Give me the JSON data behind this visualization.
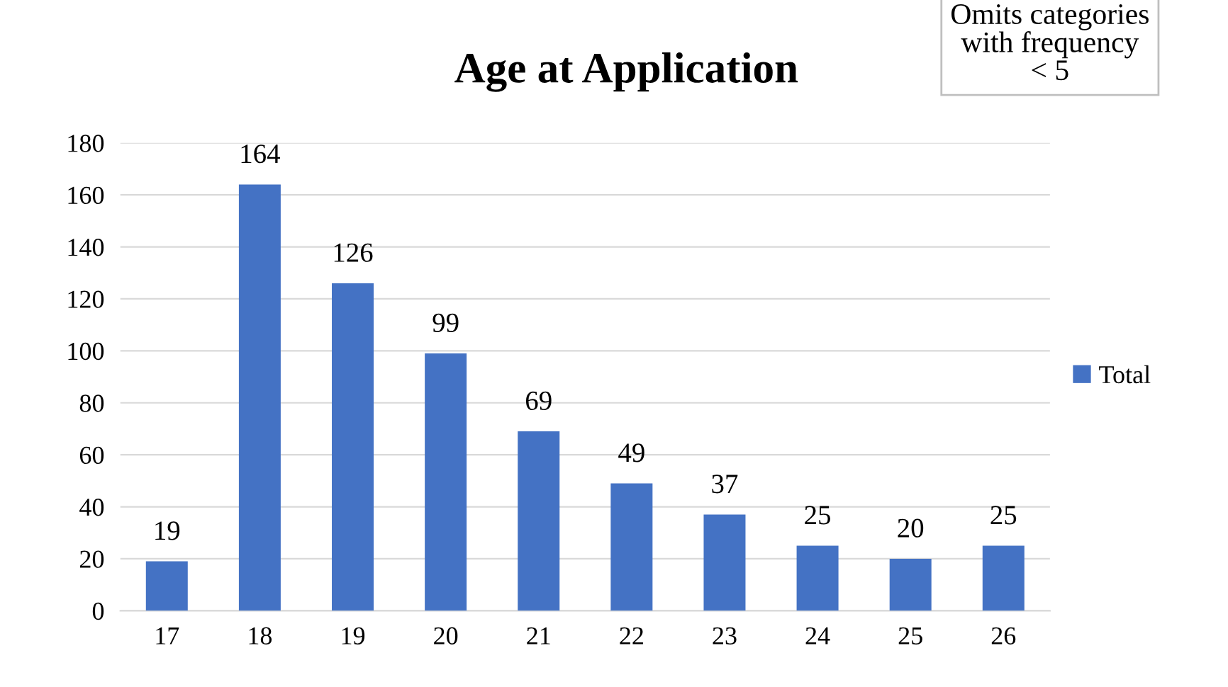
{
  "chart_data": {
    "type": "bar",
    "title": "Age at Application",
    "annotations": [
      "Omits categories\nwith frequency\n< 5"
    ],
    "categories": [
      "17",
      "18",
      "19",
      "20",
      "21",
      "22",
      "23",
      "24",
      "25",
      "26"
    ],
    "series": [
      {
        "name": "Total",
        "color": "#4472c4",
        "values": [
          19,
          164,
          126,
          99,
          69,
          49,
          37,
          25,
          20,
          25
        ]
      }
    ],
    "ylim": [
      0,
      180
    ],
    "yticks": [
      0,
      20,
      40,
      60,
      80,
      100,
      120,
      140,
      160,
      180
    ],
    "grid": "y",
    "legend": "right",
    "data_labels": true
  }
}
